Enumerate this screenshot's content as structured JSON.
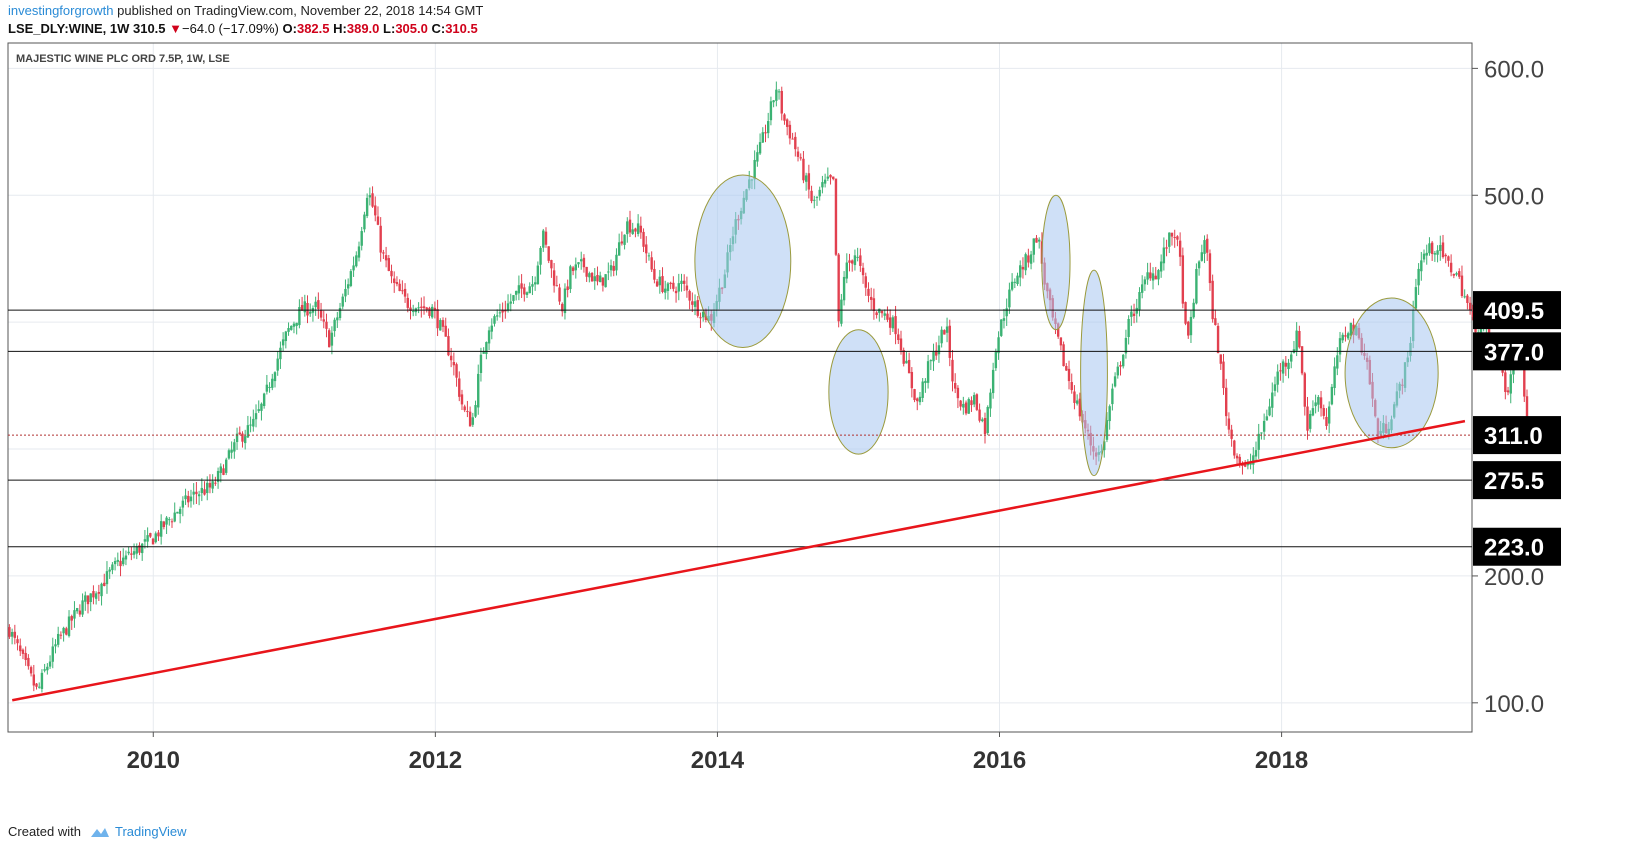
{
  "header": {
    "username": "investingforgrowth",
    "published_text": "published on TradingView.com, November 22, 2018 14:54 GMT",
    "symbol": "LSE_DLY:WINE, 1W",
    "last": "310.5",
    "change_arrow": "▼",
    "change": "−64.0 (−17.09%)",
    "open_label": "O:",
    "open": "382.5",
    "high_label": "H:",
    "high": "389.0",
    "low_label": "L:",
    "low": "305.0",
    "close_label": "C:",
    "close": "310.5"
  },
  "footer": {
    "created_with": "Created with",
    "brand": "TradingView",
    "icon": "tradingview-cloud-icon"
  },
  "colors": {
    "up": "#3bb273",
    "down": "#e2404f",
    "trendline": "#e8151b",
    "ellipse_fill": "#a8c6f0",
    "ellipse_stroke": "#9a9a3c",
    "level_line": "#111111",
    "grid": "#e6eaef"
  },
  "chart_data": {
    "type": "candlestick",
    "title": "MAJESTIC WINE PLC ORD 7.5P, 1W, LSE",
    "xlabel": "",
    "ylabel": "",
    "x_range": [
      2008.97,
      2019.35
    ],
    "y_range": [
      77,
      620
    ],
    "x_ticks": [
      {
        "value": 2010,
        "label": "2010"
      },
      {
        "value": 2012,
        "label": "2012"
      },
      {
        "value": 2014,
        "label": "2014"
      },
      {
        "value": 2016,
        "label": "2016"
      },
      {
        "value": 2018,
        "label": "2018"
      }
    ],
    "y_ticks": [
      {
        "value": 100,
        "label": "100.0"
      },
      {
        "value": 200,
        "label": "200.0"
      },
      {
        "value": 500,
        "label": "500.0"
      },
      {
        "value": 600,
        "label": "600.0"
      }
    ],
    "grid": true,
    "price_levels": [
      {
        "value": 409.5,
        "label": "409.5"
      },
      {
        "value": 377.0,
        "label": "377.0"
      },
      {
        "value": 311.0,
        "label": "311.0"
      },
      {
        "value": 275.5,
        "label": "275.5"
      },
      {
        "value": 223.0,
        "label": "223.0"
      }
    ],
    "trendline": {
      "start": [
        2009.0,
        102
      ],
      "end": [
        2019.3,
        322
      ]
    },
    "highlight_ellipses": [
      {
        "center": [
          2014.18,
          448
        ],
        "radii": [
          0.34,
          68
        ]
      },
      {
        "center": [
          2015.0,
          345
        ],
        "radii": [
          0.21,
          49
        ]
      },
      {
        "center": [
          2016.4,
          447
        ],
        "radii": [
          0.1,
          53
        ]
      },
      {
        "center": [
          2016.67,
          360
        ],
        "radii": [
          0.095,
          81
        ]
      },
      {
        "center": [
          2018.78,
          360
        ],
        "radii": [
          0.33,
          59
        ]
      }
    ],
    "anchors": [
      [
        2008.98,
        158
      ],
      [
        2009.05,
        140
      ],
      [
        2009.13,
        120
      ],
      [
        2009.18,
        108
      ],
      [
        2009.22,
        122
      ],
      [
        2009.32,
        148
      ],
      [
        2009.42,
        165
      ],
      [
        2009.5,
        178
      ],
      [
        2009.62,
        192
      ],
      [
        2009.75,
        210
      ],
      [
        2009.88,
        220
      ],
      [
        2010.0,
        230
      ],
      [
        2010.1,
        243
      ],
      [
        2010.2,
        255
      ],
      [
        2010.3,
        265
      ],
      [
        2010.42,
        270
      ],
      [
        2010.52,
        290
      ],
      [
        2010.6,
        308
      ],
      [
        2010.7,
        318
      ],
      [
        2010.78,
        336
      ],
      [
        2010.85,
        362
      ],
      [
        2010.95,
        392
      ],
      [
        2011.05,
        410
      ],
      [
        2011.15,
        412
      ],
      [
        2011.25,
        385
      ],
      [
        2011.35,
        420
      ],
      [
        2011.45,
        458
      ],
      [
        2011.52,
        505
      ],
      [
        2011.57,
        485
      ],
      [
        2011.62,
        455
      ],
      [
        2011.7,
        430
      ],
      [
        2011.8,
        415
      ],
      [
        2011.9,
        412
      ],
      [
        2011.98,
        410
      ],
      [
        2012.04,
        395
      ],
      [
        2012.12,
        370
      ],
      [
        2012.2,
        330
      ],
      [
        2012.26,
        320
      ],
      [
        2012.32,
        368
      ],
      [
        2012.38,
        398
      ],
      [
        2012.5,
        412
      ],
      [
        2012.6,
        425
      ],
      [
        2012.7,
        432
      ],
      [
        2012.76,
        470
      ],
      [
        2012.82,
        442
      ],
      [
        2012.9,
        412
      ],
      [
        2012.96,
        440
      ],
      [
        2013.05,
        445
      ],
      [
        2013.15,
        430
      ],
      [
        2013.25,
        440
      ],
      [
        2013.35,
        478
      ],
      [
        2013.45,
        472
      ],
      [
        2013.55,
        435
      ],
      [
        2013.65,
        425
      ],
      [
        2013.75,
        430
      ],
      [
        2013.85,
        412
      ],
      [
        2013.95,
        402
      ],
      [
        2014.05,
        438
      ],
      [
        2014.12,
        475
      ],
      [
        2014.22,
        510
      ],
      [
        2014.3,
        535
      ],
      [
        2014.36,
        560
      ],
      [
        2014.42,
        586
      ],
      [
        2014.47,
        560
      ],
      [
        2014.53,
        545
      ],
      [
        2014.6,
        520
      ],
      [
        2014.68,
        492
      ],
      [
        2014.75,
        508
      ],
      [
        2014.82,
        512
      ],
      [
        2014.86,
        395
      ],
      [
        2014.9,
        440
      ],
      [
        2014.98,
        455
      ],
      [
        2015.05,
        425
      ],
      [
        2015.12,
        410
      ],
      [
        2015.2,
        405
      ],
      [
        2015.27,
        395
      ],
      [
        2015.35,
        360
      ],
      [
        2015.42,
        335
      ],
      [
        2015.48,
        360
      ],
      [
        2015.55,
        378
      ],
      [
        2015.62,
        398
      ],
      [
        2015.68,
        345
      ],
      [
        2015.75,
        332
      ],
      [
        2015.82,
        340
      ],
      [
        2015.9,
        315
      ],
      [
        2015.97,
        380
      ],
      [
        2016.05,
        415
      ],
      [
        2016.12,
        438
      ],
      [
        2016.2,
        450
      ],
      [
        2016.27,
        470
      ],
      [
        2016.32,
        432
      ],
      [
        2016.38,
        400
      ],
      [
        2016.45,
        370
      ],
      [
        2016.52,
        345
      ],
      [
        2016.58,
        325
      ],
      [
        2016.66,
        300
      ],
      [
        2016.72,
        295
      ],
      [
        2016.8,
        345
      ],
      [
        2016.86,
        370
      ],
      [
        2016.92,
        400
      ],
      [
        2017.0,
        422
      ],
      [
        2017.06,
        440
      ],
      [
        2017.12,
        438
      ],
      [
        2017.18,
        460
      ],
      [
        2017.24,
        472
      ],
      [
        2017.28,
        448
      ],
      [
        2017.33,
        378
      ],
      [
        2017.4,
        440
      ],
      [
        2017.46,
        470
      ],
      [
        2017.5,
        415
      ],
      [
        2017.55,
        380
      ],
      [
        2017.62,
        318
      ],
      [
        2017.68,
        295
      ],
      [
        2017.75,
        282
      ],
      [
        2017.82,
        300
      ],
      [
        2017.9,
        330
      ],
      [
        2017.98,
        362
      ],
      [
        2018.05,
        372
      ],
      [
        2018.12,
        392
      ],
      [
        2018.18,
        315
      ],
      [
        2018.25,
        345
      ],
      [
        2018.32,
        320
      ],
      [
        2018.4,
        378
      ],
      [
        2018.48,
        398
      ],
      [
        2018.54,
        390
      ],
      [
        2018.6,
        372
      ],
      [
        2018.68,
        312
      ],
      [
        2018.75,
        318
      ],
      [
        2018.82,
        342
      ],
      [
        2018.9,
        372
      ],
      [
        2018.96,
        440
      ],
      [
        2019.02,
        455
      ],
      [
        2019.1,
        460
      ],
      [
        2019.18,
        445
      ],
      [
        2019.24,
        438
      ],
      [
        2019.3,
        420
      ],
      [
        2019.36,
        398
      ],
      [
        2019.45,
        395
      ],
      [
        2019.55,
        372
      ],
      [
        2019.6,
        340
      ],
      [
        2019.65,
        378
      ],
      [
        2019.7,
        382
      ],
      [
        2019.74,
        310
      ]
    ]
  }
}
